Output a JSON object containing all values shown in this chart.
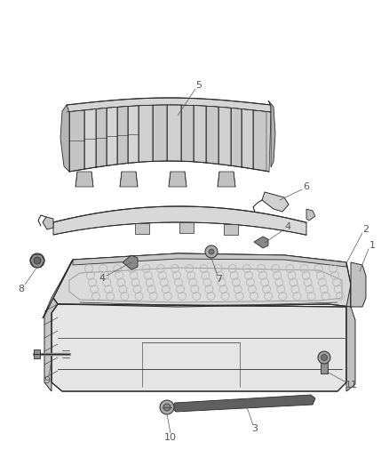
{
  "background_color": "#ffffff",
  "line_color": "#2a2a2a",
  "label_color": "#555555",
  "fig_width": 4.38,
  "fig_height": 5.33,
  "dpi": 100,
  "fill_light": "#e8e8e8",
  "fill_mid": "#d0d0d0",
  "fill_dark": "#b0b0b0",
  "fill_very_dark": "#888888"
}
